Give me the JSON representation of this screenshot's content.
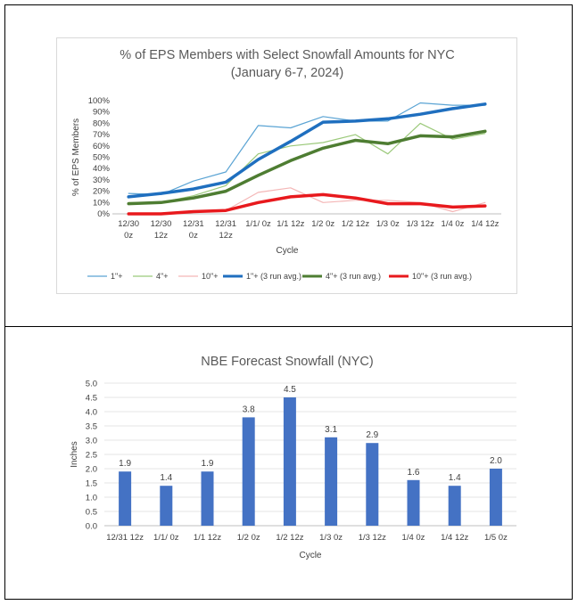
{
  "chart_data": [
    {
      "type": "line",
      "title": "% of EPS Members with Select Snowfall Amounts for NYC",
      "subtitle": "(January 6-7, 2024)",
      "xlabel": "Cycle",
      "ylabel": "% of EPS Members",
      "categories": [
        [
          "12/30",
          "0z"
        ],
        [
          "12/30",
          "12z"
        ],
        [
          "12/31",
          "0z"
        ],
        [
          "12/31",
          "12z"
        ],
        [
          "1/1/ 0z"
        ],
        [
          "1/1 12z"
        ],
        [
          "1/2 0z"
        ],
        [
          "1/2 12z"
        ],
        [
          "1/3 0z"
        ],
        [
          "1/3 12z"
        ],
        [
          "1/4 0z"
        ],
        [
          "1/4 12z"
        ]
      ],
      "yticks": [
        "0%",
        "10%",
        "20%",
        "30%",
        "40%",
        "50%",
        "60%",
        "70%",
        "80%",
        "90%",
        "100%"
      ],
      "ylim": [
        0,
        100
      ],
      "legend_position": "bottom",
      "series": [
        {
          "name": "1\"+",
          "color": "#5ba4d4",
          "width": 1.2,
          "values": [
            18,
            17,
            29,
            37,
            78,
            76,
            86,
            82,
            82,
            98,
            96,
            96
          ]
        },
        {
          "name": "4\"+",
          "color": "#9bc97a",
          "width": 1.2,
          "values": [
            10,
            10,
            16,
            25,
            53,
            60,
            63,
            70,
            53,
            80,
            66,
            71
          ]
        },
        {
          "name": "10\"+",
          "color": "#f4b6b6",
          "width": 1.2,
          "values": [
            0,
            0,
            2,
            3,
            19,
            23,
            10,
            12,
            12,
            10,
            2,
            10
          ]
        },
        {
          "name": "1\"+ (3 run avg.)",
          "color": "#1f6fbf",
          "width": 3.5,
          "values": [
            15,
            18,
            22,
            28,
            48,
            64,
            81,
            82,
            84,
            88,
            93,
            97
          ]
        },
        {
          "name": "4\"+ (3 run avg.)",
          "color": "#4e7d32",
          "width": 3.5,
          "values": [
            9,
            10,
            14,
            20,
            34,
            47,
            58,
            65,
            62,
            69,
            68,
            73
          ]
        },
        {
          "name": "10\"+ (3 run avg.)",
          "color": "#e8191d",
          "width": 3.5,
          "values": [
            0,
            0,
            2,
            3,
            10,
            15,
            17,
            14,
            9,
            9,
            6,
            7
          ]
        }
      ]
    },
    {
      "type": "bar",
      "title": "NBE Forecast Snowfall (NYC)",
      "xlabel": "Cycle",
      "ylabel": "Inches",
      "categories": [
        "12/31 12z",
        "1/1/ 0z",
        "1/1 12z",
        "1/2 0z",
        "1/2 12z",
        "1/3 0z",
        "1/3 12z",
        "1/4 0z",
        "1/4 12z",
        "1/5 0z"
      ],
      "values": [
        1.9,
        1.4,
        1.9,
        3.8,
        4.5,
        3.1,
        2.9,
        1.6,
        1.4,
        2.0
      ],
      "data_labels": [
        "1.9",
        "1.4",
        "1.9",
        "3.8",
        "4.5",
        "3.1",
        "2.9",
        "1.6",
        "1.4",
        "2.0"
      ],
      "yticks": [
        "0.0",
        "0.5",
        "1.0",
        "1.5",
        "2.0",
        "2.5",
        "3.0",
        "3.5",
        "4.0",
        "4.5",
        "5.0"
      ],
      "ylim": [
        0,
        5
      ],
      "bar_color": "#4472c4",
      "grid": true
    }
  ]
}
